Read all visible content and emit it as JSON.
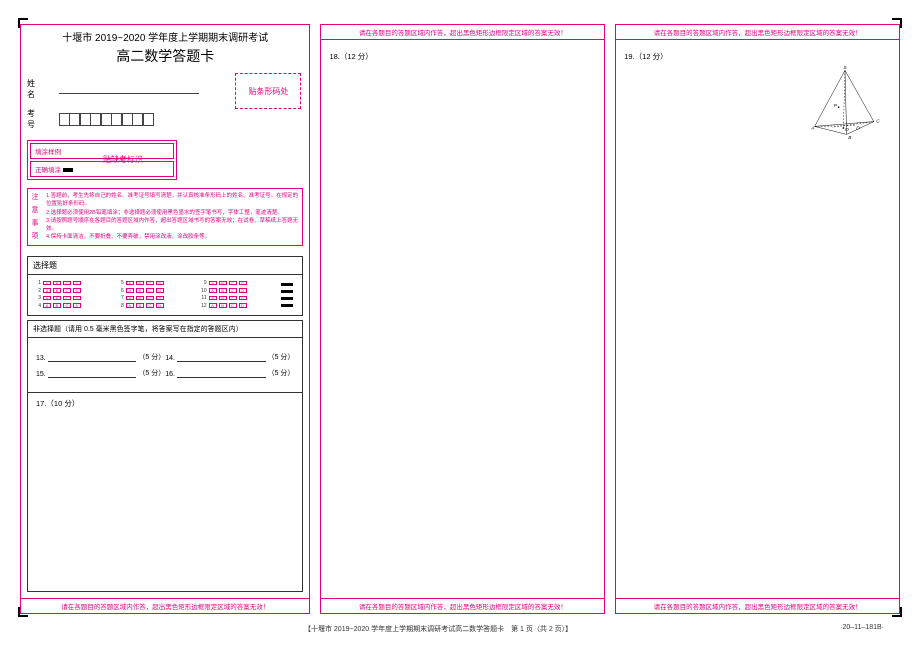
{
  "header": {
    "line1": "十堰市 2019~2020 学年度上学期期末调研考试",
    "line2": "高二数学答题卡"
  },
  "identity": {
    "name_label": "姓　名",
    "id_label": "考　号",
    "id_box_count": 9,
    "barcode_label": "贴条形码处"
  },
  "fill_example": {
    "r1": "填涂样例",
    "r2": "正确填涂",
    "mark_label": "贴缺考标识"
  },
  "notice": {
    "side": [
      "注",
      "意",
      "事",
      "项"
    ],
    "lines": [
      "1.答题前，考生先将自己的姓名、准考证号填写清楚，并认真核准条形码上的姓名、准考证号。在规定的位置贴好条形码。",
      "2.选择题必须使用2B铅笔填涂；非选择题必须使用黑色墨水的签字笔书写，字体工整，笔迹清楚。",
      "3.请按照题号顺序在各题目的答题区域内作答，超出答题区域书写的答案无效；在试卷、草稿纸上答题无效。",
      "4.保持卡面清洁，不要折叠、不要弄破，禁用涂改液、涂改胶条等。"
    ]
  },
  "mc": {
    "title": "选择题",
    "options": [
      "A",
      "B",
      "C",
      "D"
    ],
    "groups": [
      [
        1,
        2,
        3,
        4
      ],
      [
        5,
        6,
        7,
        8
      ],
      [
        9,
        10,
        11,
        12
      ]
    ]
  },
  "free": {
    "title": "非选择题（请用 0.5 毫米黑色签字笔，将答案写在指定的答题区内）",
    "fills": [
      {
        "n": "13.",
        "pts": "（5 分）"
      },
      {
        "n": "14.",
        "pts": "（5 分）"
      },
      {
        "n": "15.",
        "pts": "（5 分）"
      },
      {
        "n": "16.",
        "pts": "（5 分）"
      }
    ],
    "q17": "17.（10 分）"
  },
  "panels": {
    "warn": "请在各题目的答题区域内作答，超出黑色矩形边框限定区域的答案无效！",
    "q18": "18.（12 分）",
    "q19": "19.（12 分）"
  },
  "diagram": {
    "labels": {
      "S": "S",
      "A": "A",
      "B": "B",
      "C": "C",
      "D": "D",
      "O": "O",
      "P": "P"
    }
  },
  "footer": {
    "center": "【十堰市 2019~2020 学年度上学期期末调研考试高二数学答题卡　第 1 页（共 2 页）】",
    "right": "·20–11–181B·"
  },
  "colors": {
    "accent": "#e6007e",
    "text": "#000000"
  }
}
